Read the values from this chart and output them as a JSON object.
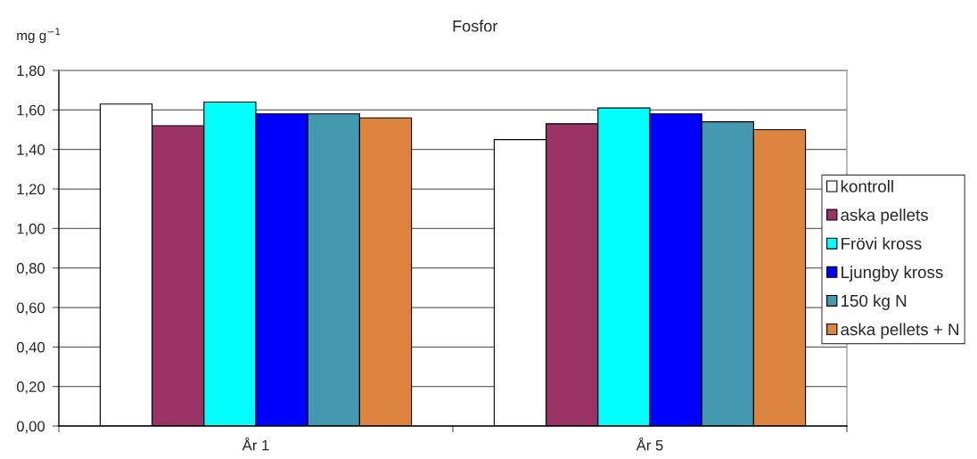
{
  "chart_data": {
    "type": "bar",
    "title": "Fosfor",
    "ylabel": "mg g$^{−1}$",
    "categories": [
      "År 1",
      "År 5"
    ],
    "series": [
      {
        "name": "kontroll",
        "color": "#ffffff",
        "values": [
          1.63,
          1.45
        ]
      },
      {
        "name": "aska pellets",
        "color": "#993366",
        "values": [
          1.52,
          1.53
        ]
      },
      {
        "name": "Frövi kross",
        "color": "#00ffff",
        "values": [
          1.64,
          1.61
        ]
      },
      {
        "name": "Ljungby kross",
        "color": "#0000ff",
        "values": [
          1.58,
          1.58
        ]
      },
      {
        "name": "150 kg N",
        "color": "#4499b0",
        "values": [
          1.58,
          1.54
        ]
      },
      {
        "name": "aska pellets + N",
        "color": "#dd8440",
        "values": [
          1.56,
          1.5
        ]
      }
    ],
    "ylim": [
      0,
      1.8
    ],
    "yticks": [
      {
        "value": 0,
        "label": "0,00"
      },
      {
        "value": 0.2,
        "label": "0,20"
      },
      {
        "value": 0.4,
        "label": "0,40"
      },
      {
        "value": 0.6,
        "label": "0,60"
      },
      {
        "value": 0.8,
        "label": "0,80"
      },
      {
        "value": 1.0,
        "label": "1,00"
      },
      {
        "value": 1.2,
        "label": "1,20"
      },
      {
        "value": 1.4,
        "label": "1,40"
      },
      {
        "value": 1.6,
        "label": "1,60"
      },
      {
        "value": 1.8,
        "label": "1,80"
      }
    ],
    "grid": "y",
    "legend": "right"
  }
}
